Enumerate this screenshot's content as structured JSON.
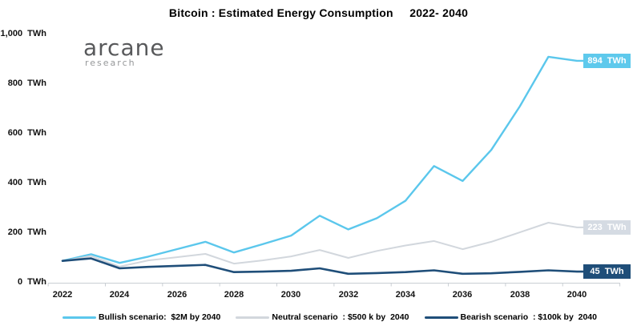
{
  "title": "Bitcoin : Estimated Energy Consumption     2022- 2040",
  "logo": {
    "name": "arcane",
    "sub": "research"
  },
  "colors": {
    "bullish": "#5bc7ec",
    "neutral": "#d2d7dd",
    "bearish": "#1f4e79",
    "axis": "#c9ced3",
    "title_text": "#000000",
    "badge_text": "#ffffff",
    "logo_main": "#58595b",
    "logo_sub": "#96989a"
  },
  "chart_data": {
    "type": "line",
    "title": "Bitcoin : Estimated Energy Consumption 2022- 2040",
    "xlabel": "",
    "ylabel": "TWh",
    "ylim": [
      0,
      1000
    ],
    "grid": false,
    "legend_position": "bottom",
    "x": [
      2022,
      2023,
      2024,
      2025,
      2026,
      2027,
      2028,
      2029,
      2030,
      2031,
      2032,
      2033,
      2034,
      2035,
      2036,
      2037,
      2038,
      2039,
      2040
    ],
    "x_tick_labels": [
      "2022",
      "2024",
      "2026",
      "2028",
      "2030",
      "2032",
      "2034",
      "2036",
      "2038",
      "2040"
    ],
    "y_ticks": [
      {
        "value": 0,
        "label": "0  TWh"
      },
      {
        "value": 200,
        "label": "200  TWh"
      },
      {
        "value": 400,
        "label": "400  TWh"
      },
      {
        "value": 600,
        "label": "600  TWh"
      },
      {
        "value": 800,
        "label": "800  TWh"
      },
      {
        "value": 1000,
        "label": "1,000  TWh"
      }
    ],
    "series": [
      {
        "id": "bullish",
        "name": "Bullish scenario:  $2M by 2040",
        "color": "#5bc7ec",
        "badge_color": "#5ec9ec",
        "end_label": "894  TWh",
        "end_value": 894,
        "values": [
          88,
          115,
          80,
          105,
          135,
          165,
          122,
          155,
          190,
          270,
          215,
          260,
          330,
          470,
          410,
          535,
          710,
          910,
          894
        ]
      },
      {
        "id": "neutral",
        "name": "Neutral scenario  : $500 k by  2040",
        "color": "#d2d7dd",
        "badge_color": "#d5dbe3",
        "end_label": "223  TWh",
        "end_value": 223,
        "values": [
          87,
          108,
          65,
          90,
          103,
          116,
          77,
          90,
          106,
          132,
          100,
          128,
          150,
          168,
          135,
          165,
          203,
          242,
          223
        ]
      },
      {
        "id": "bearish",
        "name": "Bearish scenario  : $100k by  2040",
        "color": "#1f4e79",
        "badge_color": "#1f4e79",
        "end_label": "45  TWh",
        "end_value": 45,
        "values": [
          88,
          98,
          58,
          64,
          68,
          72,
          43,
          45,
          48,
          58,
          36,
          39,
          43,
          50,
          36,
          38,
          44,
          50,
          45
        ]
      }
    ]
  }
}
